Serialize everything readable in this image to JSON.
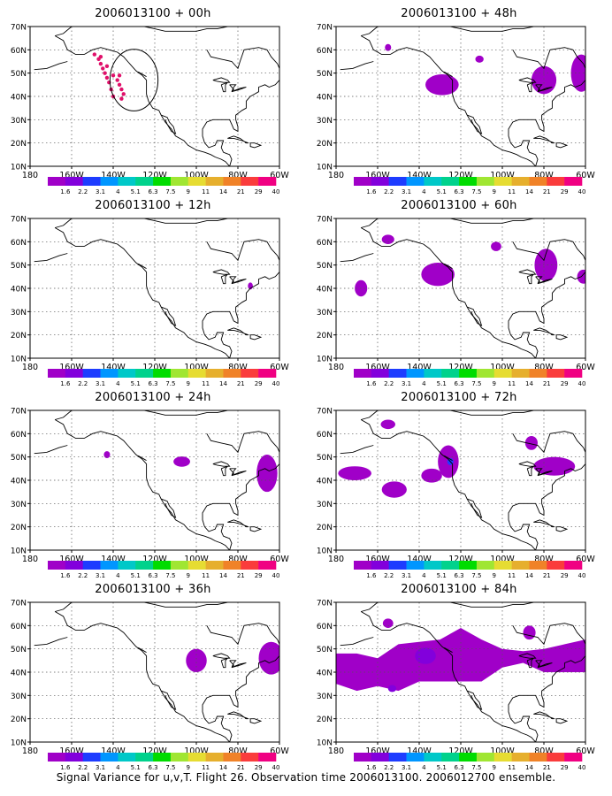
{
  "footer": "Signal Variance for u,v,T. Flight 26. Observation time 2006013100. 2006012700 ensemble.",
  "color_scale": {
    "labels": [
      "1.6",
      "2.2",
      "3.1",
      "4",
      "5.1",
      "6.3",
      "7.5",
      "9",
      "11",
      "14",
      "21",
      "29",
      "40"
    ],
    "colors": [
      "#a000c8",
      "#8200dc",
      "#1e3cff",
      "#0096ff",
      "#00c8c8",
      "#00d28c",
      "#00dc00",
      "#a0e632",
      "#e6dc32",
      "#e6af2d",
      "#f08228",
      "#fa3c3c",
      "#f00082"
    ]
  },
  "chart_data": [
    {
      "type": "heatmap",
      "title": "2006013100 + 00h",
      "xlim": [
        "180",
        "60W"
      ],
      "ylim": [
        "10N",
        "70N"
      ],
      "xticks": [
        "180",
        "160W",
        "140W",
        "120W",
        "100W",
        "80W",
        "60W"
      ],
      "yticks": [
        "10N",
        "20N",
        "30N",
        "40N",
        "50N",
        "60N",
        "70N"
      ],
      "grid": true,
      "features": [
        {
          "kind": "dots",
          "description": "flight track observation points",
          "lon": [
            -149,
            -147,
            -146,
            -145,
            -144,
            -143,
            -142,
            -141,
            -140,
            -146,
            -143,
            -140,
            -138,
            -137,
            -136,
            -135,
            -136,
            -137
          ],
          "lat": [
            58,
            56,
            54,
            52,
            50,
            48,
            46,
            43,
            40,
            57,
            53,
            49,
            47,
            45,
            43,
            41,
            39,
            49
          ]
        },
        {
          "kind": "circle",
          "description": "verification region",
          "center_lon": -130,
          "center_lat": 47,
          "radius_deg": 11
        }
      ]
    },
    {
      "type": "heatmap",
      "title": "2006013100 + 12h",
      "xlim": [
        "180",
        "60W"
      ],
      "ylim": [
        "10N",
        "70N"
      ],
      "xticks": [
        "180",
        "160W",
        "140W",
        "120W",
        "100W",
        "80W",
        "60W"
      ],
      "yticks": [
        "10N",
        "20N",
        "30N",
        "40N",
        "50N",
        "60N",
        "70N"
      ],
      "grid": true,
      "features": [
        {
          "kind": "blob",
          "lon": -74,
          "lat": 41,
          "rx_deg": 1.2,
          "ry_deg": 1.5,
          "level": "1.6"
        }
      ]
    },
    {
      "type": "heatmap",
      "title": "2006013100 + 24h",
      "xlim": [
        "180",
        "60W"
      ],
      "ylim": [
        "10N",
        "70N"
      ],
      "xticks": [
        "180",
        "160W",
        "140W",
        "120W",
        "100W",
        "80W",
        "60W"
      ],
      "yticks": [
        "10N",
        "20N",
        "30N",
        "40N",
        "50N",
        "60N",
        "70N"
      ],
      "grid": true,
      "features": [
        {
          "kind": "blob",
          "lon": -143,
          "lat": 51,
          "rx_deg": 1.5,
          "ry_deg": 1.5,
          "level": "1.6"
        },
        {
          "kind": "blob",
          "lon": -107,
          "lat": 48,
          "rx_deg": 4,
          "ry_deg": 2.2,
          "level": "1.6"
        },
        {
          "kind": "blob",
          "lon": -66,
          "lat": 43,
          "rx_deg": 5,
          "ry_deg": 8,
          "level": "1.6"
        }
      ]
    },
    {
      "type": "heatmap",
      "title": "2006013100 + 36h",
      "xlim": [
        "180",
        "60W"
      ],
      "ylim": [
        "10N",
        "70N"
      ],
      "xticks": [
        "180",
        "160W",
        "140W",
        "120W",
        "100W",
        "80W",
        "60W"
      ],
      "yticks": [
        "10N",
        "20N",
        "30N",
        "40N",
        "50N",
        "60N",
        "70N"
      ],
      "grid": true,
      "features": [
        {
          "kind": "blob",
          "lon": -100,
          "lat": 45,
          "rx_deg": 5,
          "ry_deg": 5,
          "level": "1.6"
        },
        {
          "kind": "blob",
          "lon": -64,
          "lat": 46,
          "rx_deg": 6,
          "ry_deg": 7,
          "level": "1.6"
        }
      ]
    },
    {
      "type": "heatmap",
      "title": "2006013100 + 48h",
      "xlim": [
        "180",
        "60W"
      ],
      "ylim": [
        "10N",
        "70N"
      ],
      "xticks": [
        "180",
        "160W",
        "140W",
        "120W",
        "100W",
        "80W",
        "60W"
      ],
      "yticks": [
        "10N",
        "20N",
        "30N",
        "40N",
        "50N",
        "60N",
        "70N"
      ],
      "grid": true,
      "features": [
        {
          "kind": "blob",
          "lon": -155,
          "lat": 61,
          "rx_deg": 1.5,
          "ry_deg": 1.5,
          "level": "1.6"
        },
        {
          "kind": "blob",
          "lon": -129,
          "lat": 45,
          "rx_deg": 8,
          "ry_deg": 4.5,
          "level": "1.6"
        },
        {
          "kind": "blob",
          "lon": -111,
          "lat": 56,
          "rx_deg": 2,
          "ry_deg": 1.5,
          "level": "1.6"
        },
        {
          "kind": "blob",
          "lon": -80,
          "lat": 47,
          "rx_deg": 6,
          "ry_deg": 6,
          "level": "1.6"
        },
        {
          "kind": "blob",
          "lon": -62,
          "lat": 50,
          "rx_deg": 5,
          "ry_deg": 8,
          "level": "1.6"
        }
      ]
    },
    {
      "type": "heatmap",
      "title": "2006013100 + 60h",
      "xlim": [
        "180",
        "60W"
      ],
      "ylim": [
        "10N",
        "70N"
      ],
      "xticks": [
        "180",
        "160W",
        "140W",
        "120W",
        "100W",
        "80W",
        "60W"
      ],
      "yticks": [
        "10N",
        "20N",
        "30N",
        "40N",
        "50N",
        "60N",
        "70N"
      ],
      "grid": true,
      "features": [
        {
          "kind": "blob",
          "lon": -168,
          "lat": 40,
          "rx_deg": 3,
          "ry_deg": 3.5,
          "level": "1.6"
        },
        {
          "kind": "blob",
          "lon": -155,
          "lat": 61,
          "rx_deg": 3,
          "ry_deg": 2,
          "level": "1.6"
        },
        {
          "kind": "blob",
          "lon": -131,
          "lat": 46,
          "rx_deg": 8,
          "ry_deg": 5,
          "level": "1.6"
        },
        {
          "kind": "blob",
          "lon": -103,
          "lat": 58,
          "rx_deg": 2.5,
          "ry_deg": 2,
          "level": "1.6"
        },
        {
          "kind": "blob",
          "lon": -79,
          "lat": 50,
          "rx_deg": 5.5,
          "ry_deg": 7,
          "level": "1.6"
        },
        {
          "kind": "blob",
          "lon": -61,
          "lat": 45,
          "rx_deg": 3,
          "ry_deg": 3,
          "level": "1.6"
        }
      ]
    },
    {
      "type": "heatmap",
      "title": "2006013100 + 72h",
      "xlim": [
        "180",
        "60W"
      ],
      "ylim": [
        "10N",
        "70N"
      ],
      "xticks": [
        "180",
        "160W",
        "140W",
        "120W",
        "100W",
        "80W",
        "60W"
      ],
      "yticks": [
        "10N",
        "20N",
        "30N",
        "40N",
        "50N",
        "60N",
        "70N"
      ],
      "grid": true,
      "features": [
        {
          "kind": "blob",
          "lon": -155,
          "lat": 64,
          "rx_deg": 3.5,
          "ry_deg": 2,
          "level": "1.6"
        },
        {
          "kind": "blob",
          "lon": -171,
          "lat": 43,
          "rx_deg": 8,
          "ry_deg": 3,
          "level": "1.6"
        },
        {
          "kind": "blob",
          "lon": -152,
          "lat": 36,
          "rx_deg": 6,
          "ry_deg": 3.5,
          "level": "1.6"
        },
        {
          "kind": "blob",
          "lon": -134,
          "lat": 42,
          "rx_deg": 5,
          "ry_deg": 3,
          "level": "1.6"
        },
        {
          "kind": "blob",
          "lon": -126,
          "lat": 48,
          "rx_deg": 5,
          "ry_deg": 7,
          "level": "1.6"
        },
        {
          "kind": "blob",
          "lon": -86,
          "lat": 56,
          "rx_deg": 3,
          "ry_deg": 3,
          "level": "1.6"
        },
        {
          "kind": "blob",
          "lon": -75,
          "lat": 46,
          "rx_deg": 10,
          "ry_deg": 4,
          "level": "1.6"
        },
        {
          "kind": "blob",
          "lon": -125,
          "lat": 48,
          "rx_deg": 1.5,
          "ry_deg": 1.5,
          "level": "3.1"
        }
      ]
    },
    {
      "type": "heatmap",
      "title": "2006013100 + 84h",
      "xlim": [
        "180",
        "60W"
      ],
      "ylim": [
        "10N",
        "70N"
      ],
      "xticks": [
        "180",
        "160W",
        "140W",
        "120W",
        "100W",
        "80W",
        "60W"
      ],
      "yticks": [
        "10N",
        "20N",
        "30N",
        "40N",
        "50N",
        "60N",
        "70N"
      ],
      "grid": true,
      "features": [
        {
          "kind": "blob",
          "lon": -155,
          "lat": 61,
          "rx_deg": 2.5,
          "ry_deg": 2,
          "level": "1.6"
        },
        {
          "kind": "blob",
          "lon": -87,
          "lat": 57,
          "rx_deg": 3,
          "ry_deg": 3,
          "level": "1.6"
        },
        {
          "kind": "band",
          "description": "wide Pacific-to-Atlantic variance band",
          "level": "1.6",
          "lon": [
            -180,
            -170,
            -160,
            -150,
            -140,
            -130,
            -120,
            -110,
            -100,
            -90,
            -80,
            -70,
            -60
          ],
          "lat_top": [
            48,
            48,
            46,
            52,
            53,
            54,
            59,
            54,
            50,
            49,
            50,
            52,
            54
          ],
          "lat_bot": [
            35,
            32,
            34,
            32,
            36,
            36,
            36,
            36,
            42,
            44,
            40,
            40,
            40
          ]
        },
        {
          "kind": "blob",
          "lon": -137,
          "lat": 47,
          "rx_deg": 5,
          "ry_deg": 3.5,
          "level": "2.2"
        },
        {
          "kind": "blob",
          "lon": -153,
          "lat": 33,
          "rx_deg": 2,
          "ry_deg": 1.5,
          "level": "2.2"
        }
      ]
    }
  ]
}
